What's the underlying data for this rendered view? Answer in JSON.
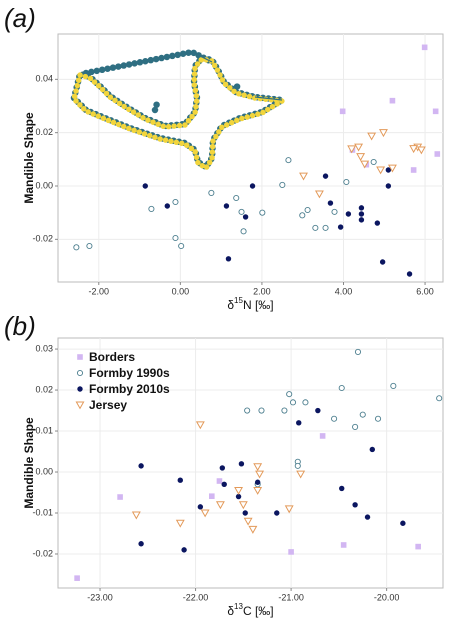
{
  "chart_data": [
    {
      "type": "scatter",
      "panel": "(a)",
      "ylabel": "Mandible Shape",
      "xlabel": {
        "prefix": "δ",
        "sup": "15",
        "suffix": "N [‰]"
      },
      "xlim": [
        -3.0,
        6.44
      ],
      "ylim": [
        -0.036,
        0.057
      ],
      "xticks": [
        {
          "value": -2,
          "label": "-2.00"
        },
        {
          "value": 0,
          "label": "0.00"
        },
        {
          "value": 2,
          "label": "2.00"
        },
        {
          "value": 4,
          "label": "4.00"
        },
        {
          "value": 6,
          "label": "6.00"
        }
      ],
      "yticks": [
        -0.02,
        {
          "value": 0,
          "label": "0.00"
        },
        0.02,
        0.04
      ],
      "grid": true,
      "series": [
        {
          "color": "#d2b6f2",
          "marker": "square",
          "x": [
            5.99,
            3.98,
            5.2,
            6.26,
            6.3,
            4.22,
            5.72,
            4.56
          ],
          "values": [
            0.052,
            0.028,
            0.032,
            0.028,
            0.012,
            0.0135,
            0.006,
            0.008
          ]
        },
        {
          "color": "#4d7f8f",
          "marker": "circle-open",
          "x": [
            -2.55,
            -2.23,
            -0.71,
            -0.12,
            0.76,
            1.37,
            1.5,
            2.01,
            2.65,
            2.5,
            2.99,
            3.31,
            3.56,
            3.78,
            3.12,
            4.07,
            -0.12,
            0.02,
            1.55,
            4.74
          ],
          "values": [
            -0.023,
            -0.0225,
            -0.0086,
            -0.006,
            -0.0026,
            -0.0045,
            -0.0097,
            -0.01,
            0.0097,
            0.0004,
            -0.011,
            -0.0157,
            -0.0157,
            -0.0097,
            -0.009,
            0.0015,
            -0.0195,
            -0.0225,
            -0.017,
            0.009
          ]
        },
        {
          "color": "#0b1660",
          "marker": "circle",
          "x": [
            -0.86,
            -0.32,
            1.13,
            1.6,
            1.77,
            1.18,
            3.56,
            3.68,
            3.93,
            4.12,
            4.44,
            4.44,
            4.44,
            4.83,
            5.1,
            5.1,
            4.96,
            5.62
          ],
          "values": [
            0.0,
            -0.0075,
            -0.0075,
            -0.0116,
            0.0,
            -0.0273,
            0.0037,
            -0.0064,
            -0.0154,
            -0.0105,
            -0.0105,
            -0.0082,
            -0.0127,
            -0.0139,
            0.006,
            0.0,
            -0.0285,
            -0.033
          ]
        },
        {
          "color": "#e39a5a",
          "marker": "triangle-down",
          "x": [
            3.02,
            3.41,
            4.2,
            4.37,
            4.42,
            4.69,
            4.98,
            4.91,
            4.52,
            5.82,
            5.91,
            5.72,
            5.2
          ],
          "values": [
            0.0037,
            -0.003,
            0.0139,
            0.0146,
            0.011,
            0.0187,
            0.02,
            0.006,
            0.0082,
            0.0146,
            0.0135,
            0.014,
            0.0067
          ]
        }
      ]
    },
    {
      "type": "scatter",
      "panel": "(b)",
      "ylabel": "Mandible Shape",
      "xlabel": {
        "prefix": "δ",
        "sup": "13",
        "suffix": "C [‰]"
      },
      "xlim": [
        -23.44,
        -19.41
      ],
      "ylim": [
        -0.0283,
        0.0327
      ],
      "xticks": [
        {
          "value": -23,
          "label": "-23.00"
        },
        {
          "value": -22,
          "label": "-22.00"
        },
        {
          "value": -21,
          "label": "-21.00"
        },
        {
          "value": -20,
          "label": "-20.00"
        }
      ],
      "yticks": [
        -0.02,
        -0.01,
        {
          "value": 0,
          "label": "0.00"
        },
        0.01,
        0.02,
        0.03
      ],
      "grid": true,
      "legend": "top-left",
      "series": [
        {
          "name": "Borders",
          "color": "#d2b6f2",
          "marker": "square",
          "x": [
            -23.24,
            -22.79,
            -21.83,
            -21.75,
            -20.67,
            -21.0,
            -20.45,
            -19.67
          ],
          "values": [
            -0.0259,
            -0.0061,
            -0.0059,
            -0.0022,
            0.0088,
            -0.0195,
            -0.0178,
            -0.0182
          ]
        },
        {
          "name": "Formby 1990s",
          "color": "#4d7f8f",
          "marker": "circle-open",
          "x": [
            -21.46,
            -21.31,
            -21.07,
            -21.02,
            -20.98,
            -20.85,
            -20.55,
            -20.47,
            -20.33,
            -20.3,
            -20.25,
            -20.09,
            -19.93,
            -19.45,
            -20.93,
            -20.93,
            -21.35
          ],
          "values": [
            0.015,
            0.015,
            0.015,
            0.019,
            0.017,
            0.017,
            0.013,
            0.0205,
            0.011,
            0.0293,
            0.014,
            0.013,
            0.021,
            0.018,
            0.0025,
            0.0015,
            -0.003
          ]
        },
        {
          "name": "Formby 2010s",
          "color": "#0b1660",
          "marker": "circle",
          "x": [
            -22.57,
            -22.57,
            -22.16,
            -22.12,
            -21.95,
            -21.72,
            -21.7,
            -21.55,
            -21.52,
            -21.48,
            -21.35,
            -21.15,
            -20.92,
            -20.47,
            -20.33,
            -20.2,
            -20.15,
            -19.83,
            -20.72
          ],
          "values": [
            0.0015,
            -0.0175,
            -0.002,
            -0.019,
            -0.0085,
            0.001,
            -0.003,
            -0.006,
            0.002,
            -0.01,
            -0.0025,
            -0.01,
            0.012,
            -0.004,
            -0.008,
            -0.011,
            0.0055,
            -0.0125,
            0.015
          ]
        },
        {
          "name": "Jersey",
          "color": "#e39a5a",
          "marker": "triangle-down",
          "x": [
            -22.62,
            -22.16,
            -21.95,
            -21.9,
            -21.74,
            -21.55,
            -21.45,
            -21.35,
            -21.33,
            -21.35,
            -21.4,
            -21.02,
            -20.9,
            -21.5
          ],
          "values": [
            -0.0105,
            -0.0125,
            0.0115,
            -0.01,
            -0.008,
            -0.0045,
            -0.012,
            0.0013,
            -0.0005,
            -0.0045,
            -0.014,
            -0.009,
            -0.0005,
            -0.008
          ]
        }
      ]
    }
  ]
}
